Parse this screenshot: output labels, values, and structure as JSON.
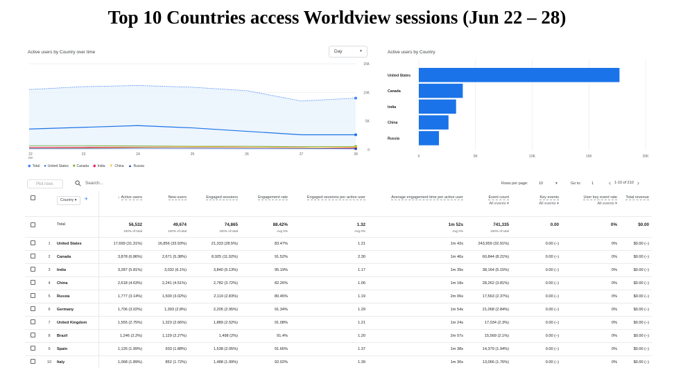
{
  "slide_title": "Top 10 Countries access Worldview sessions (Jun 22 – 28)",
  "line_card": {
    "title": "Active users by Country over time",
    "period_select": "Day",
    "y_ticks": [
      "15K",
      "10K",
      "5K",
      "0"
    ],
    "x_ticks": [
      "22",
      "23",
      "24",
      "25",
      "26",
      "27",
      "28"
    ],
    "x_sub": "Jun",
    "legend": [
      {
        "label": "Total",
        "color": "#4285f4",
        "icon": "line-dot"
      },
      {
        "label": "United States",
        "color": "#1a73e8",
        "icon": "dot"
      },
      {
        "label": "Canada",
        "color": "#7cb342",
        "icon": "square"
      },
      {
        "label": "India",
        "color": "#e91e63",
        "icon": "diamond"
      },
      {
        "label": "China",
        "color": "#fbc02d",
        "icon": "triangle-down"
      },
      {
        "label": "Russia",
        "color": "#3949ab",
        "icon": "triangle-up"
      }
    ]
  },
  "bar_card": {
    "title": "Active users by Country",
    "x_ticks": [
      "0",
      "5K",
      "10K",
      "15K",
      "20K"
    ]
  },
  "chart_data": [
    {
      "type": "line",
      "title": "Active users by Country over time",
      "x": [
        "Jun 22",
        "Jun 23",
        "Jun 24",
        "Jun 25",
        "Jun 26",
        "Jun 27",
        "Jun 28"
      ],
      "ylim": [
        0,
        15000
      ],
      "series": [
        {
          "name": "Total",
          "color": "#4285f4",
          "values": [
            10500,
            11000,
            11200,
            10900,
            10300,
            8500,
            9000
          ],
          "area": true
        },
        {
          "name": "United States",
          "color": "#1a73e8",
          "values": [
            3600,
            3900,
            4200,
            3800,
            3200,
            2600,
            2600
          ]
        },
        {
          "name": "Canada",
          "color": "#7cb342",
          "values": [
            700,
            700,
            650,
            600,
            600,
            520,
            560
          ]
        },
        {
          "name": "India",
          "color": "#e91e63",
          "values": [
            400,
            420,
            450,
            460,
            430,
            380,
            300
          ]
        },
        {
          "name": "China",
          "color": "#fbc02d",
          "values": [
            250,
            300,
            400,
            500,
            450,
            350,
            400
          ]
        },
        {
          "name": "Russia",
          "color": "#3949ab",
          "values": [
            200,
            220,
            260,
            250,
            220,
            200,
            160
          ]
        }
      ]
    },
    {
      "type": "bar",
      "orientation": "horizontal",
      "title": "Active users by Country",
      "categories": [
        "United States",
        "Canada",
        "India",
        "China",
        "Russia"
      ],
      "values": [
        17699,
        3878,
        3287,
        2618,
        1777
      ],
      "xlim": [
        0,
        20000
      ],
      "color": "#1a73e8"
    }
  ],
  "table": {
    "plot_rows": "Plot rows",
    "search_placeholder": "Search...",
    "rows_per_page_label": "Rows per page:",
    "rows_per_page": "10",
    "goto_label": "Go to:",
    "goto_value": "1",
    "pagination": "1-10 of 210",
    "dimension": "Country",
    "columns": [
      {
        "label": "Active users",
        "sorted": true
      },
      {
        "label": "New users"
      },
      {
        "label": "Engaged sessions"
      },
      {
        "label": "Engagement rate"
      },
      {
        "label": "Engaged sessions per active user"
      },
      {
        "label": "Average engagement time per active user"
      },
      {
        "label": "Event count",
        "select": "All events"
      },
      {
        "label": "Key events",
        "select": "All events"
      },
      {
        "label": "User key event rate",
        "select": "All events"
      },
      {
        "label": "Total revenue"
      }
    ],
    "total": {
      "label": "Total",
      "cells": [
        {
          "v": "56,532",
          "s": "100% of total"
        },
        {
          "v": "49,674",
          "s": "100% of total"
        },
        {
          "v": "74,865",
          "s": "100% of total"
        },
        {
          "v": "88.42%",
          "s": "Avg 0%"
        },
        {
          "v": "1.32",
          "s": "Avg 0%"
        },
        {
          "v": "1m 52s",
          "s": "Avg 0%"
        },
        {
          "v": "741,335",
          "s": "100% of total"
        },
        {
          "v": "0.00",
          "s": ""
        },
        {
          "v": "0%",
          "s": ""
        },
        {
          "v": "$0.00",
          "s": ""
        }
      ]
    },
    "rows": [
      {
        "n": "1",
        "country": "United States",
        "cells": [
          "17,699 (31.31%)",
          "16,856 (33.93%)",
          "21,333 (28.5%)",
          "83.47%",
          "1.21",
          "1m 42s",
          "243,959 (32.91%)",
          "0.00 (–)",
          "0%",
          "$0.00 (–)"
        ]
      },
      {
        "n": "2",
        "country": "Canada",
        "cells": [
          "3,878 (6.86%)",
          "2,671 (5.38%)",
          "8,925 (11.92%)",
          "91.52%",
          "2.30",
          "1m 46s",
          "60,844 (8.21%)",
          "0.00 (–)",
          "0%",
          "$0.00 (–)"
        ]
      },
      {
        "n": "3",
        "country": "India",
        "cells": [
          "3,287 (5.81%)",
          "3,032 (6.1%)",
          "3,840 (5.13%)",
          "95.19%",
          "1.17",
          "1m 39s",
          "38,164 (5.15%)",
          "0.00 (–)",
          "0%",
          "$0.00 (–)"
        ]
      },
      {
        "n": "4",
        "country": "China",
        "cells": [
          "2,618 (4.63%)",
          "2,241 (4.51%)",
          "2,782 (3.72%)",
          "82.26%",
          "1.06",
          "1m 18s",
          "28,262 (3.81%)",
          "0.00 (–)",
          "0%",
          "$0.00 (–)"
        ]
      },
      {
        "n": "5",
        "country": "Russia",
        "cells": [
          "1,777 (3.14%)",
          "1,500 (3.02%)",
          "2,119 (2.83%)",
          "80.45%",
          "1.19",
          "2m 06s",
          "17,563 (2.37%)",
          "0.00 (–)",
          "0%",
          "$0.00 (–)"
        ]
      },
      {
        "n": "6",
        "country": "Germany",
        "cells": [
          "1,706 (3.02%)",
          "1,393 (2.8%)",
          "2,205 (2.95%)",
          "91.34%",
          "1.29",
          "1m 54s",
          "21,068 (2.84%)",
          "0.00 (–)",
          "0%",
          "$0.00 (–)"
        ]
      },
      {
        "n": "7",
        "country": "United Kingdom",
        "cells": [
          "1,555 (2.75%)",
          "1,323 (2.66%)",
          "1,889 (2.52%)",
          "91.08%",
          "1.21",
          "1m 24s",
          "17,034 (2.3%)",
          "0.00 (–)",
          "0%",
          "$0.00 (–)"
        ]
      },
      {
        "n": "8",
        "country": "Brazil",
        "cells": [
          "1,246 (2.2%)",
          "1,129 (2.27%)",
          "1,498 (2%)",
          "91.4%",
          "1.20",
          "2m 07s",
          "15,569 (2.1%)",
          "0.00 (–)",
          "0%",
          "$0.00 (–)"
        ]
      },
      {
        "n": "9",
        "country": "Spain",
        "cells": [
          "1,126 (1.99%)",
          "933 (1.88%)",
          "1,538 (2.05%)",
          "91.66%",
          "1.37",
          "1m 38s",
          "14,379 (1.94%)",
          "0.00 (–)",
          "0%",
          "$0.00 (–)"
        ]
      },
      {
        "n": "10",
        "country": "Italy",
        "cells": [
          "1,068 (1.89%)",
          "852 (1.72%)",
          "1,488 (1.99%)",
          "92.02%",
          "1.39",
          "1m 30s",
          "13,066 (1.76%)",
          "0.00 (–)",
          "0%",
          "$0.00 (–)"
        ]
      }
    ]
  }
}
